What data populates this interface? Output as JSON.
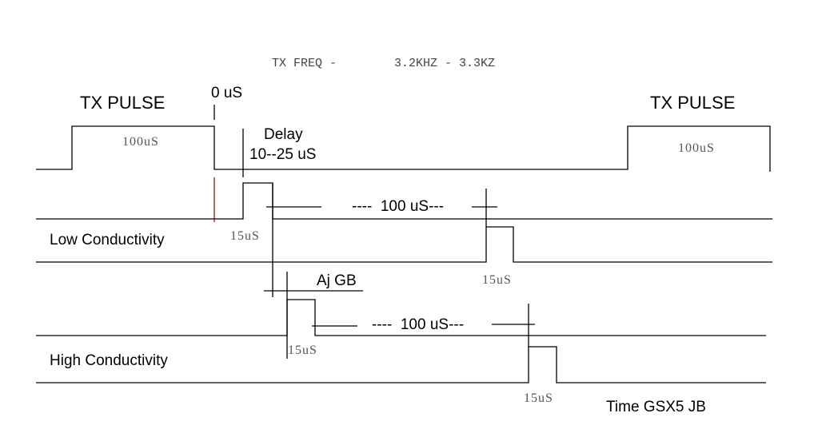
{
  "title": "TX FREQ -        3.2KHZ - 3.3KZ",
  "tx_pulse_label_left": "TX PULSE",
  "tx_pulse_label_right": "TX PULSE",
  "zero_label": "0 uS",
  "delay_label": "Delay",
  "delay_range": "10--25 uS",
  "pulse_width_left": "100uS",
  "pulse_width_right": "100uS",
  "low_conductivity": {
    "label": "Low Conductivity",
    "period_label": "----  100 uS---",
    "pulse1_width": "15uS",
    "pulse2_width": "15uS"
  },
  "high_conductivity": {
    "label": "High Conductivity",
    "period_label": "----  100 uS---",
    "adjust_label": "Aj GB",
    "pulse1_width": "15uS",
    "pulse2_width": "15uS"
  },
  "credit": "Time GSX5 JB",
  "colors": {
    "line": "#000000",
    "marker": "#8b1a1a"
  }
}
